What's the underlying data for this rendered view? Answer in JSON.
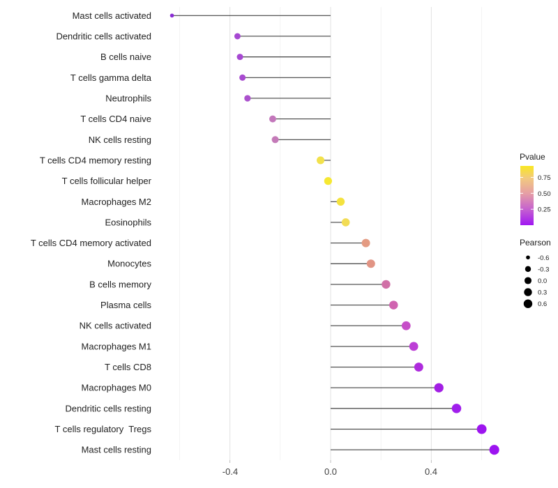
{
  "chart_data": {
    "type": "lollipop",
    "orientation": "horizontal",
    "xlabel": "",
    "ylabel": "",
    "x_tick_labels": [
      "-0.4",
      "0.0",
      "0.4"
    ],
    "x_tick_values": [
      -0.4,
      0.0,
      0.4
    ],
    "x_minor_gridlines": [
      -0.6,
      -0.2,
      0.2,
      0.6
    ],
    "xlim": [
      -0.7,
      0.712
    ],
    "grid": "on",
    "stem_color": "#404040",
    "rows": [
      {
        "label": "Mast cells activated",
        "pearson": -0.63,
        "color": "#8A2BD4"
      },
      {
        "label": "Dendritic cells activated",
        "pearson": -0.37,
        "color": "#A648D2"
      },
      {
        "label": "B cells naive",
        "pearson": -0.36,
        "color": "#A648D2"
      },
      {
        "label": "T cells gamma delta",
        "pearson": -0.35,
        "color": "#A84BD0"
      },
      {
        "label": "Neutrophils",
        "pearson": -0.33,
        "color": "#AB51CD"
      },
      {
        "label": "T cells CD4 naive",
        "pearson": -0.23,
        "color": "#C377BB"
      },
      {
        "label": "NK cells resting",
        "pearson": -0.22,
        "color": "#C47AB8"
      },
      {
        "label": "T cells CD4 memory resting",
        "pearson": -0.04,
        "color": "#F2E14C"
      },
      {
        "label": "T cells follicular helper",
        "pearson": -0.01,
        "color": "#F6E832"
      },
      {
        "label": "Macrophages M2",
        "pearson": 0.04,
        "color": "#F4E23E"
      },
      {
        "label": "Eosinophils",
        "pearson": 0.06,
        "color": "#F2DC55"
      },
      {
        "label": "T cells CD4 memory activated",
        "pearson": 0.14,
        "color": "#E49B82"
      },
      {
        "label": "Monocytes",
        "pearson": 0.16,
        "color": "#E19484"
      },
      {
        "label": "B cells memory",
        "pearson": 0.22,
        "color": "#D06FA6"
      },
      {
        "label": "Plasma cells",
        "pearson": 0.25,
        "color": "#D064B0"
      },
      {
        "label": "NK cells activated",
        "pearson": 0.3,
        "color": "#C64EC8"
      },
      {
        "label": "Macrophages M1",
        "pearson": 0.33,
        "color": "#BC3ED6"
      },
      {
        "label": "T cells CD8",
        "pearson": 0.35,
        "color": "#AE2BDD"
      },
      {
        "label": "Macrophages M0",
        "pearson": 0.43,
        "color": "#A21EE4"
      },
      {
        "label": "Dendritic cells resting",
        "pearson": 0.5,
        "color": "#A01EEC"
      },
      {
        "label": "T cells regulatory  Tregs",
        "pearson": 0.6,
        "color": "#9D15EF"
      },
      {
        "label": "Mast cells resting",
        "pearson": 0.65,
        "color": "#9C13F0"
      }
    ],
    "legends": {
      "color": {
        "title": "Pvalue",
        "tick_labels": [
          "0.75",
          "0.50",
          "0.25"
        ],
        "tick_values": [
          0.75,
          0.5,
          0.25
        ],
        "range_max": 0.93,
        "gradient_stops": [
          {
            "o": 0.0,
            "c": "#F9E721"
          },
          {
            "o": 0.21,
            "c": "#F2C97F"
          },
          {
            "o": 0.47,
            "c": "#E59DA6"
          },
          {
            "o": 0.74,
            "c": "#C45FD0"
          },
          {
            "o": 1.0,
            "c": "#A017F2"
          }
        ]
      },
      "size": {
        "title": "Pearson",
        "items": [
          {
            "label": "-0.6",
            "value": -0.6
          },
          {
            "label": "-0.3",
            "value": -0.3
          },
          {
            "label": "0.0",
            "value": 0.0
          },
          {
            "label": "0.3",
            "value": 0.3
          },
          {
            "label": "0.6",
            "value": 0.6
          }
        ],
        "dot_color": "#000000"
      }
    }
  },
  "colors": {
    "background": "#FFFFFF",
    "major_grid": "#E4E4E4",
    "minor_grid": "#F1F1F1",
    "axis_tick": "#BDBDBD",
    "axis_text": "#404040",
    "label_text": "#212121",
    "legend_text": "#1A1A1A"
  }
}
